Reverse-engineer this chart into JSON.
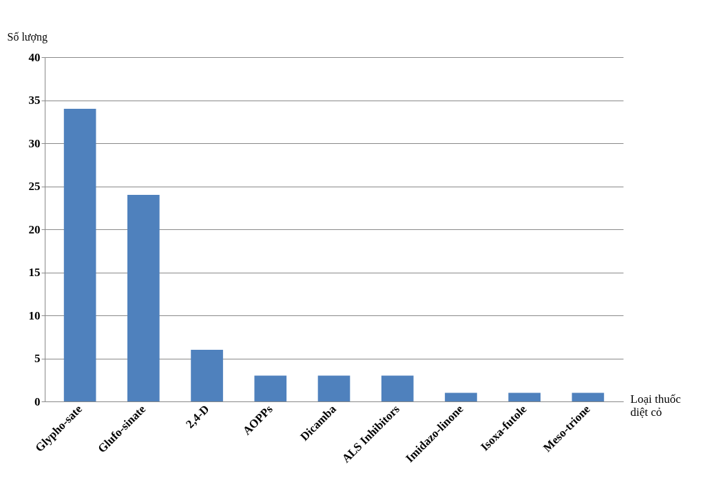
{
  "chart_data": {
    "type": "bar",
    "xlabel": "Loại thuốc diệt cỏ",
    "ylabel": "Số lượng",
    "categories": [
      "Glypho-sate",
      "Glufo-sinate",
      "2,4-D",
      "AOPPs",
      "Dicamba",
      "ALS Inhibitors",
      "Imidazo-linone",
      "Isoxa-futole",
      "Meso-trione"
    ],
    "values": [
      34,
      24,
      6,
      3,
      3,
      3,
      1,
      1,
      1
    ],
    "color": "#4f81bd",
    "ylim": [
      0,
      40
    ],
    "yticks": [
      0,
      5,
      10,
      15,
      20,
      25,
      30,
      35,
      40
    ],
    "grid": "y"
  }
}
